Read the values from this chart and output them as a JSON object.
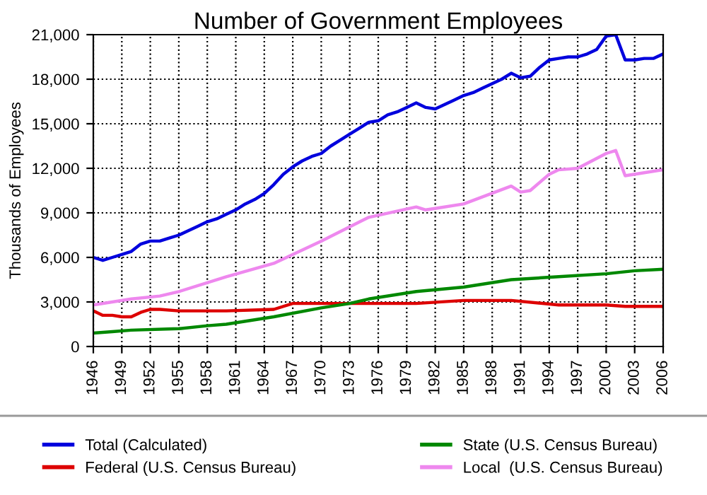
{
  "chart_data": {
    "type": "line",
    "title": "Number of Government Employees",
    "ylabel": "Thousands of Employees",
    "xlim": [
      1946,
      2006
    ],
    "xticks": [
      {
        "value": 1946,
        "label": "1946"
      },
      {
        "value": 1949,
        "label": "1949"
      },
      {
        "value": 1952,
        "label": "1952"
      },
      {
        "value": 1955,
        "label": "1955"
      },
      {
        "value": 1958,
        "label": "1958"
      },
      {
        "value": 1961,
        "label": "1961"
      },
      {
        "value": 1964,
        "label": "1964"
      },
      {
        "value": 1967,
        "label": "1967"
      },
      {
        "value": 1970,
        "label": "1970"
      },
      {
        "value": 1973,
        "label": "1973"
      },
      {
        "value": 1976,
        "label": "1976"
      },
      {
        "value": 1979,
        "label": "1979"
      },
      {
        "value": 1982,
        "label": "1982"
      },
      {
        "value": 1985,
        "label": "1985"
      },
      {
        "value": 1988,
        "label": "1988"
      },
      {
        "value": 1991,
        "label": "1991"
      },
      {
        "value": 1994,
        "label": "1994"
      },
      {
        "value": 1997,
        "label": "1997"
      },
      {
        "value": 2000,
        "label": "2000"
      },
      {
        "value": 2003,
        "label": "2003"
      },
      {
        "value": 2006,
        "label": "2006"
      }
    ],
    "ylim": [
      0,
      21000
    ],
    "yticks": [
      0,
      {
        "value": 3000,
        "label": "3,000"
      },
      {
        "value": 6000,
        "label": "6,000"
      },
      {
        "value": 9000,
        "label": "9,000"
      },
      {
        "value": 12000,
        "label": "12,000"
      },
      {
        "value": 15000,
        "label": "15,000"
      },
      {
        "value": 18000,
        "label": "18,000"
      },
      {
        "value": 21000,
        "label": "21,000"
      }
    ],
    "grid": true,
    "legend": "bottom",
    "line_style": "solid",
    "series": [
      {
        "name": "Total (Calculated)",
        "color": "#0000dd",
        "x": [
          1946,
          1947,
          1948,
          1949,
          1950,
          1951,
          1952,
          1953,
          1954,
          1955,
          1956,
          1957,
          1958,
          1959,
          1960,
          1961,
          1962,
          1963,
          1964,
          1965,
          1966,
          1967,
          1968,
          1969,
          1970,
          1971,
          1972,
          1973,
          1974,
          1975,
          1976,
          1977,
          1978,
          1979,
          1980,
          1981,
          1982,
          1983,
          1984,
          1985,
          1986,
          1987,
          1988,
          1989,
          1990,
          1991,
          1992,
          1993,
          1994,
          1995,
          1996,
          1997,
          1998,
          1999,
          2000,
          2001,
          2002,
          2003,
          2004,
          2005,
          2006
        ],
        "values": [
          6000,
          5800,
          6000,
          6200,
          6400,
          6900,
          7100,
          7100,
          7300,
          7500,
          7800,
          8100,
          8400,
          8600,
          8900,
          9200,
          9600,
          9900,
          10300,
          10900,
          11600,
          12100,
          12500,
          12800,
          13000,
          13500,
          13900,
          14300,
          14700,
          15100,
          15200,
          15600,
          15800,
          16100,
          16400,
          16100,
          16000,
          16300,
          16600,
          16900,
          17100,
          17400,
          17700,
          18000,
          18400,
          18100,
          18200,
          18800,
          19300,
          19400,
          19500,
          19500,
          19700,
          20000,
          20900,
          21000,
          19300,
          19300,
          19400,
          19400,
          19700
        ]
      },
      {
        "name": "Federal (U.S. Census Bureau)",
        "color": "#dd0000",
        "x": [
          1946,
          1947,
          1948,
          1949,
          1950,
          1951,
          1952,
          1953,
          1955,
          1960,
          1965,
          1967,
          1970,
          1975,
          1980,
          1985,
          1990,
          1995,
          2000,
          2002,
          2006
        ],
        "values": [
          2400,
          2100,
          2100,
          2000,
          2000,
          2300,
          2500,
          2500,
          2400,
          2400,
          2500,
          2900,
          2900,
          2900,
          2900,
          3100,
          3100,
          2800,
          2800,
          2700,
          2700
        ]
      },
      {
        "name": "State (U.S. Census Bureau)",
        "color": "#008800",
        "x": [
          1946,
          1948,
          1950,
          1955,
          1958,
          1960,
          1965,
          1970,
          1973,
          1975,
          1980,
          1985,
          1990,
          1995,
          2000,
          2003,
          2006
        ],
        "values": [
          900,
          1000,
          1100,
          1200,
          1400,
          1500,
          2000,
          2600,
          2900,
          3200,
          3700,
          4000,
          4500,
          4700,
          4900,
          5100,
          5200
        ]
      },
      {
        "name": "Local  (U.S. Census Bureau)",
        "color": "#ee88ee",
        "x": [
          1946,
          1950,
          1953,
          1955,
          1960,
          1965,
          1970,
          1975,
          1980,
          1981,
          1982,
          1985,
          1990,
          1991,
          1992,
          1994,
          1995,
          1997,
          2000,
          2001,
          2002,
          2006
        ],
        "values": [
          2800,
          3200,
          3400,
          3700,
          4700,
          5600,
          7100,
          8700,
          9400,
          9200,
          9300,
          9600,
          10800,
          10400,
          10500,
          11600,
          11900,
          12000,
          13000,
          13200,
          11500,
          11900
        ]
      }
    ]
  }
}
